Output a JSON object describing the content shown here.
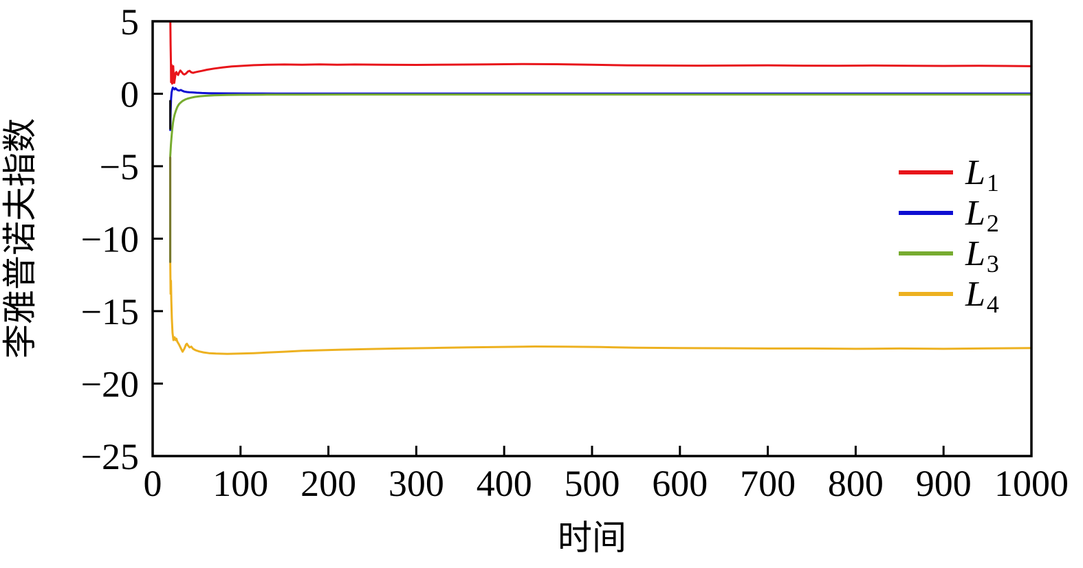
{
  "chart_data": {
    "type": "line",
    "title": "",
    "xlabel": "时间",
    "ylabel": "李雅普诺夫指数",
    "xlim": [
      0,
      1000
    ],
    "ylim": [
      -25,
      5
    ],
    "xticks": [
      0,
      100,
      200,
      300,
      400,
      500,
      600,
      700,
      800,
      900,
      1000
    ],
    "yticks": [
      5,
      0,
      -5,
      -10,
      -15,
      -20,
      -25
    ],
    "grid": false,
    "frame": "full-box",
    "tick_direction": "in",
    "legend_position": "right-center",
    "axis_color": "#000000",
    "series": [
      {
        "name": "L1",
        "label_base": "L",
        "label_sub": "1",
        "color": "#e8141a",
        "converged_value": 1.9,
        "points": [
          [
            20,
            5.6
          ],
          [
            20.4,
            3.4
          ],
          [
            20.8,
            2.0
          ],
          [
            21,
            0.8
          ],
          [
            21.4,
            2.0
          ],
          [
            21.8,
            1.2
          ],
          [
            22.2,
            0.7
          ],
          [
            22.8,
            1.0
          ],
          [
            23.4,
            1.9
          ],
          [
            24,
            1.1
          ],
          [
            24.6,
            0.75
          ],
          [
            25.4,
            1.1
          ],
          [
            26.2,
            1.45
          ],
          [
            27,
            1.5
          ],
          [
            28,
            1.35
          ],
          [
            29,
            1.3
          ],
          [
            30,
            1.45
          ],
          [
            31.5,
            1.6
          ],
          [
            33,
            1.5
          ],
          [
            34.5,
            1.38
          ],
          [
            36,
            1.33
          ],
          [
            38,
            1.4
          ],
          [
            40,
            1.53
          ],
          [
            42,
            1.58
          ],
          [
            44,
            1.48
          ],
          [
            46,
            1.44
          ],
          [
            48,
            1.48
          ],
          [
            52,
            1.53
          ],
          [
            56,
            1.58
          ],
          [
            62,
            1.66
          ],
          [
            70,
            1.74
          ],
          [
            80,
            1.82
          ],
          [
            90,
            1.88
          ],
          [
            100,
            1.92
          ],
          [
            115,
            1.97
          ],
          [
            130,
            2.0
          ],
          [
            150,
            2.02
          ],
          [
            170,
            2.0
          ],
          [
            190,
            2.03
          ],
          [
            210,
            2.0
          ],
          [
            230,
            2.02
          ],
          [
            260,
            2.0
          ],
          [
            300,
            1.99
          ],
          [
            340,
            2.01
          ],
          [
            380,
            2.03
          ],
          [
            420,
            2.05
          ],
          [
            460,
            2.04
          ],
          [
            500,
            2.0
          ],
          [
            540,
            1.96
          ],
          [
            580,
            1.95
          ],
          [
            620,
            1.94
          ],
          [
            660,
            1.95
          ],
          [
            700,
            1.96
          ],
          [
            740,
            1.94
          ],
          [
            780,
            1.93
          ],
          [
            820,
            1.95
          ],
          [
            860,
            1.93
          ],
          [
            900,
            1.92
          ],
          [
            940,
            1.93
          ],
          [
            970,
            1.92
          ],
          [
            1000,
            1.9
          ]
        ]
      },
      {
        "name": "L2",
        "label_base": "L",
        "label_sub": "2",
        "color": "#0e0ed2",
        "converged_value": 0.0,
        "points": [
          [
            20,
            -2.5
          ],
          [
            20.5,
            -1.2
          ],
          [
            21,
            -0.35
          ],
          [
            21.6,
            0.1
          ],
          [
            22.3,
            0.3
          ],
          [
            23,
            0.42
          ],
          [
            24,
            0.35
          ],
          [
            25,
            0.3
          ],
          [
            26,
            0.38
          ],
          [
            27,
            0.32
          ],
          [
            28,
            0.26
          ],
          [
            30,
            0.22
          ],
          [
            32,
            0.26
          ],
          [
            34,
            0.2
          ],
          [
            36,
            0.15
          ],
          [
            39,
            0.12
          ],
          [
            42,
            0.1
          ],
          [
            46,
            0.09
          ],
          [
            50,
            0.07
          ],
          [
            56,
            0.05
          ],
          [
            64,
            0.04
          ],
          [
            75,
            0.03
          ],
          [
            90,
            0.025
          ],
          [
            110,
            0.02
          ],
          [
            140,
            0.015
          ],
          [
            180,
            0.01
          ],
          [
            250,
            0.01
          ],
          [
            350,
            0.01
          ],
          [
            500,
            0.01
          ],
          [
            700,
            0.01
          ],
          [
            850,
            0.01
          ],
          [
            1000,
            0.01
          ]
        ]
      },
      {
        "name": "L3",
        "label_base": "L",
        "label_sub": "3",
        "color": "#77ac30",
        "converged_value": -0.05,
        "points": [
          [
            20,
            -4.3
          ],
          [
            20.8,
            -3.5
          ],
          [
            21.6,
            -2.9
          ],
          [
            22.4,
            -2.4
          ],
          [
            23.2,
            -2.0
          ],
          [
            24,
            -1.7
          ],
          [
            25,
            -1.45
          ],
          [
            26.5,
            -1.15
          ],
          [
            28,
            -0.92
          ],
          [
            30,
            -0.72
          ],
          [
            32,
            -0.6
          ],
          [
            34,
            -0.5
          ],
          [
            37,
            -0.4
          ],
          [
            40,
            -0.33
          ],
          [
            44,
            -0.27
          ],
          [
            48,
            -0.22
          ],
          [
            53,
            -0.18
          ],
          [
            60,
            -0.14
          ],
          [
            70,
            -0.11
          ],
          [
            85,
            -0.085
          ],
          [
            100,
            -0.07
          ],
          [
            130,
            -0.06
          ],
          [
            170,
            -0.055
          ],
          [
            250,
            -0.05
          ],
          [
            400,
            -0.05
          ],
          [
            600,
            -0.05
          ],
          [
            800,
            -0.05
          ],
          [
            1000,
            -0.05
          ]
        ]
      },
      {
        "name": "L4",
        "label_base": "L",
        "label_sub": "4",
        "color": "#edb120",
        "converged_value": -17.55,
        "points": [
          [
            20,
            -11.6
          ],
          [
            20.4,
            -13.8
          ],
          [
            20.8,
            -12.9
          ],
          [
            21.2,
            -14.2
          ],
          [
            21.8,
            -15.5
          ],
          [
            22.6,
            -16.5
          ],
          [
            23.6,
            -17.0
          ],
          [
            25,
            -16.8
          ],
          [
            26,
            -17.0
          ],
          [
            27,
            -16.9
          ],
          [
            28,
            -17.1
          ],
          [
            30,
            -17.3
          ],
          [
            32,
            -17.55
          ],
          [
            34,
            -17.8
          ],
          [
            36,
            -17.6
          ],
          [
            38,
            -17.3
          ],
          [
            39,
            -17.25
          ],
          [
            40,
            -17.35
          ],
          [
            42,
            -17.5
          ],
          [
            44,
            -17.45
          ],
          [
            46,
            -17.6
          ],
          [
            49,
            -17.7
          ],
          [
            53,
            -17.78
          ],
          [
            58,
            -17.85
          ],
          [
            64,
            -17.9
          ],
          [
            72,
            -17.93
          ],
          [
            85,
            -17.95
          ],
          [
            100,
            -17.93
          ],
          [
            115,
            -17.9
          ],
          [
            130,
            -17.86
          ],
          [
            150,
            -17.8
          ],
          [
            170,
            -17.74
          ],
          [
            190,
            -17.7
          ],
          [
            215,
            -17.66
          ],
          [
            245,
            -17.62
          ],
          [
            280,
            -17.58
          ],
          [
            320,
            -17.54
          ],
          [
            360,
            -17.5
          ],
          [
            400,
            -17.47
          ],
          [
            435,
            -17.44
          ],
          [
            470,
            -17.45
          ],
          [
            510,
            -17.48
          ],
          [
            550,
            -17.52
          ],
          [
            600,
            -17.55
          ],
          [
            650,
            -17.56
          ],
          [
            700,
            -17.58
          ],
          [
            750,
            -17.58
          ],
          [
            800,
            -17.6
          ],
          [
            850,
            -17.58
          ],
          [
            900,
            -17.6
          ],
          [
            950,
            -17.57
          ],
          [
            1000,
            -17.55
          ]
        ]
      }
    ],
    "initial_overlap_bands": [
      {
        "x": 20,
        "from": -0.5,
        "to": -2.4,
        "color": "#15151c"
      },
      {
        "x": 20,
        "from": -4.4,
        "to": -11.6,
        "color": "#78792f"
      }
    ]
  }
}
